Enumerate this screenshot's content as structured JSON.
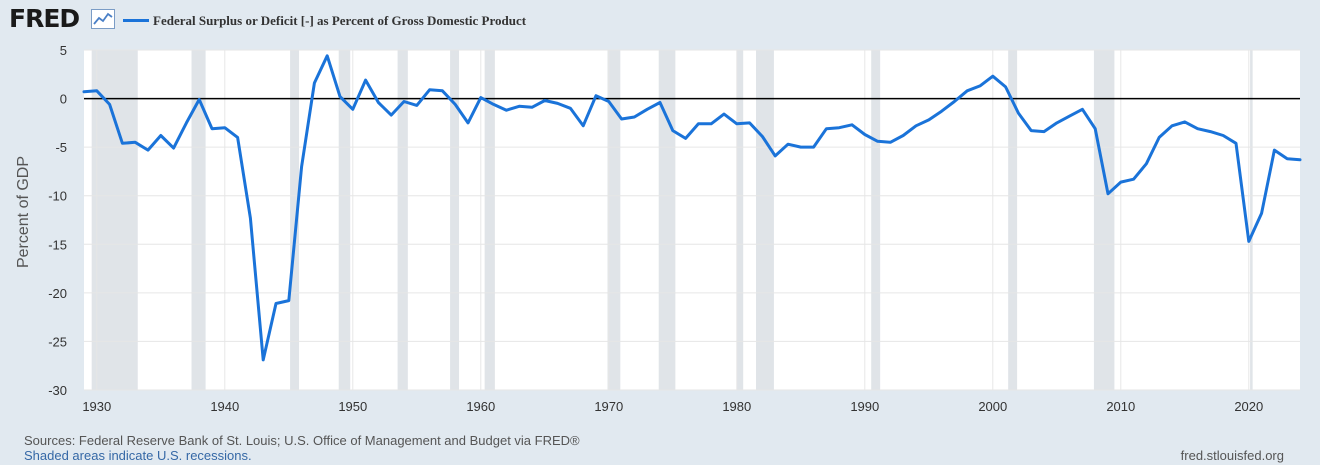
{
  "header": {
    "logo": "FRED",
    "legend_label": "Federal Surplus or Deficit [-] as Percent of Gross Domestic Product",
    "series_color": "#1a73d9"
  },
  "footer": {
    "sources": "Sources: Federal Reserve Bank of St. Louis; U.S. Office of Management and Budget via FRED®",
    "recession_note": "Shaded areas indicate U.S. recessions.",
    "url": "fred.stlouisfed.org"
  },
  "chart_data": {
    "type": "line",
    "title": "",
    "xlabel": "",
    "ylabel": "Percent of GDP",
    "xlim": [
      1929,
      2024
    ],
    "ylim": [
      -30,
      5
    ],
    "x_ticks": [
      1930,
      1940,
      1950,
      1960,
      1970,
      1980,
      1990,
      2000,
      2010,
      2020
    ],
    "y_ticks": [
      5,
      0,
      -5,
      -10,
      -15,
      -20,
      -25,
      -30
    ],
    "grid": true,
    "zero_line": true,
    "recession_shading_color": "#e0e4e8",
    "recessions": [
      [
        1929.6,
        1933.2
      ],
      [
        1937.4,
        1938.5
      ],
      [
        1945.1,
        1945.8
      ],
      [
        1948.9,
        1949.8
      ],
      [
        1953.5,
        1954.3
      ],
      [
        1957.6,
        1958.3
      ],
      [
        1960.3,
        1961.1
      ],
      [
        1969.9,
        1970.9
      ],
      [
        1973.9,
        1975.2
      ],
      [
        1980.0,
        1980.5
      ],
      [
        1981.5,
        1982.9
      ],
      [
        1990.5,
        1991.2
      ],
      [
        2001.2,
        2001.9
      ],
      [
        2007.9,
        2009.5
      ],
      [
        2020.1,
        2020.3
      ]
    ],
    "series": [
      {
        "name": "Federal Surplus or Deficit [-] as Percent of Gross Domestic Product",
        "x": [
          1929,
          1930,
          1931,
          1932,
          1933,
          1934,
          1935,
          1936,
          1937,
          1938,
          1939,
          1940,
          1941,
          1942,
          1943,
          1944,
          1945,
          1946,
          1947,
          1948,
          1949,
          1950,
          1951,
          1952,
          1953,
          1954,
          1955,
          1956,
          1957,
          1958,
          1959,
          1960,
          1961,
          1962,
          1963,
          1964,
          1965,
          1966,
          1967,
          1968,
          1969,
          1970,
          1971,
          1972,
          1973,
          1974,
          1975,
          1976,
          1977,
          1978,
          1979,
          1980,
          1981,
          1982,
          1983,
          1984,
          1985,
          1986,
          1987,
          1988,
          1989,
          1990,
          1991,
          1992,
          1993,
          1994,
          1995,
          1996,
          1997,
          1998,
          1999,
          2000,
          2001,
          2002,
          2003,
          2004,
          2005,
          2006,
          2007,
          2008,
          2009,
          2010,
          2011,
          2012,
          2013,
          2014,
          2015,
          2016,
          2017,
          2018,
          2019,
          2020,
          2021,
          2022,
          2023,
          2024
        ],
        "values": [
          0.7,
          0.8,
          -0.6,
          -4.6,
          -4.5,
          -5.3,
          -3.8,
          -5.1,
          -2.5,
          -0.1,
          -3.1,
          -3.0,
          -4.0,
          -12.3,
          -26.9,
          -21.1,
          -20.8,
          -7.0,
          1.6,
          4.4,
          0.2,
          -1.1,
          1.9,
          -0.4,
          -1.7,
          -0.3,
          -0.7,
          0.9,
          0.8,
          -0.6,
          -2.5,
          0.1,
          -0.6,
          -1.2,
          -0.8,
          -0.9,
          -0.2,
          -0.5,
          -1.0,
          -2.8,
          0.3,
          -0.3,
          -2.1,
          -1.9,
          -1.1,
          -0.4,
          -3.3,
          -4.1,
          -2.6,
          -2.6,
          -1.6,
          -2.6,
          -2.5,
          -3.9,
          -5.9,
          -4.7,
          -5.0,
          -5.0,
          -3.1,
          -3.0,
          -2.7,
          -3.7,
          -4.4,
          -4.5,
          -3.8,
          -2.8,
          -2.2,
          -1.3,
          -0.3,
          0.8,
          1.3,
          2.3,
          1.2,
          -1.5,
          -3.3,
          -3.4,
          -2.5,
          -1.8,
          -1.1,
          -3.1,
          -9.8,
          -8.6,
          -8.3,
          -6.7,
          -4.0,
          -2.8,
          -2.4,
          -3.1,
          -3.4,
          -3.8,
          -4.6,
          -14.7,
          -11.8,
          -5.3,
          -6.2,
          -6.3
        ]
      }
    ]
  }
}
